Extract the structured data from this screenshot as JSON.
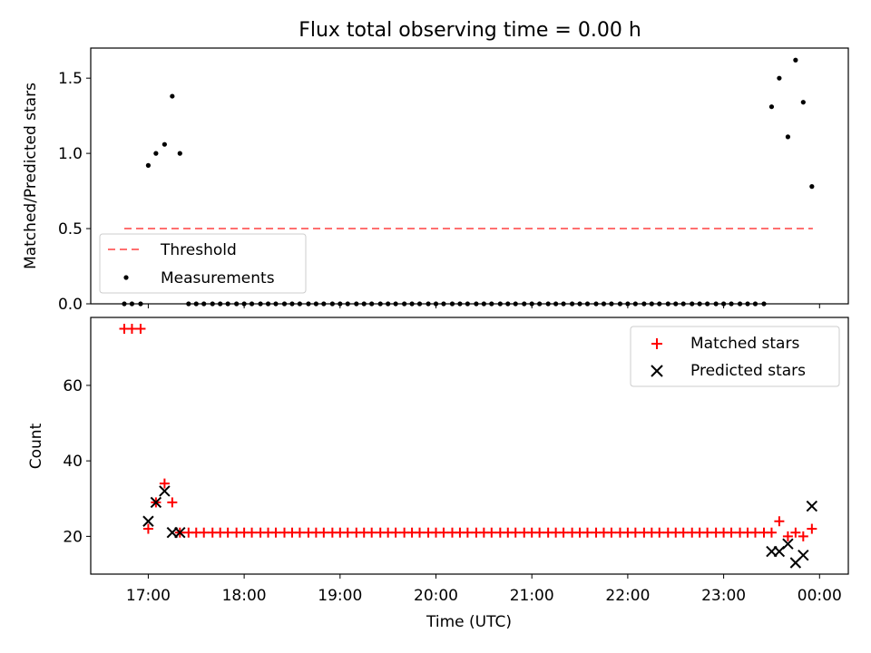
{
  "chart_data": [
    {
      "type": "scatter",
      "title": "Flux total observing time = 0.00 h",
      "xlabel": "",
      "ylabel": "Matched/Predicted stars",
      "x_unit": "hours since 00:00 UTC (17.0 = 17:00)",
      "xlim": [
        16.4,
        24.3
      ],
      "ylim": [
        0,
        1.7
      ],
      "yticks": [
        0.0,
        0.5,
        1.0,
        1.5
      ],
      "ytick_labels": [
        "0.0",
        "0.5",
        "1.0",
        "1.5"
      ],
      "grid": false,
      "legend_position": "lower-left",
      "threshold": {
        "name": "Threshold",
        "value": 0.5,
        "x_start": 16.75,
        "x_end": 23.93,
        "color": "#ff7070",
        "style": "dashed"
      },
      "series": [
        {
          "name": "Measurements",
          "marker": "dot",
          "color": "#000000",
          "points": [
            [
              16.75,
              0
            ],
            [
              16.83,
              0
            ],
            [
              16.92,
              0
            ],
            [
              17.0,
              0.92
            ],
            [
              17.08,
              1.0
            ],
            [
              17.17,
              1.06
            ],
            [
              17.25,
              1.38
            ],
            [
              17.33,
              1.0
            ],
            [
              17.42,
              0
            ],
            [
              17.5,
              0
            ],
            [
              17.58,
              0
            ],
            [
              17.67,
              0
            ],
            [
              17.75,
              0
            ],
            [
              17.83,
              0
            ],
            [
              17.92,
              0
            ],
            [
              18.0,
              0
            ],
            [
              18.08,
              0
            ],
            [
              18.17,
              0
            ],
            [
              18.25,
              0
            ],
            [
              18.33,
              0
            ],
            [
              18.42,
              0
            ],
            [
              18.5,
              0
            ],
            [
              18.58,
              0
            ],
            [
              18.67,
              0
            ],
            [
              18.75,
              0
            ],
            [
              18.83,
              0
            ],
            [
              18.92,
              0
            ],
            [
              19.0,
              0
            ],
            [
              19.08,
              0
            ],
            [
              19.17,
              0
            ],
            [
              19.25,
              0
            ],
            [
              19.33,
              0
            ],
            [
              19.42,
              0
            ],
            [
              19.5,
              0
            ],
            [
              19.58,
              0
            ],
            [
              19.67,
              0
            ],
            [
              19.75,
              0
            ],
            [
              19.83,
              0
            ],
            [
              19.92,
              0
            ],
            [
              20.0,
              0
            ],
            [
              20.08,
              0
            ],
            [
              20.17,
              0
            ],
            [
              20.25,
              0
            ],
            [
              20.33,
              0
            ],
            [
              20.42,
              0
            ],
            [
              20.5,
              0
            ],
            [
              20.58,
              0
            ],
            [
              20.67,
              0
            ],
            [
              20.75,
              0
            ],
            [
              20.83,
              0
            ],
            [
              20.92,
              0
            ],
            [
              21.0,
              0
            ],
            [
              21.08,
              0
            ],
            [
              21.17,
              0
            ],
            [
              21.25,
              0
            ],
            [
              21.33,
              0
            ],
            [
              21.42,
              0
            ],
            [
              21.5,
              0
            ],
            [
              21.58,
              0
            ],
            [
              21.67,
              0
            ],
            [
              21.75,
              0
            ],
            [
              21.83,
              0
            ],
            [
              21.92,
              0
            ],
            [
              22.0,
              0
            ],
            [
              22.08,
              0
            ],
            [
              22.17,
              0
            ],
            [
              22.25,
              0
            ],
            [
              22.33,
              0
            ],
            [
              22.42,
              0
            ],
            [
              22.5,
              0
            ],
            [
              22.58,
              0
            ],
            [
              22.67,
              0
            ],
            [
              22.75,
              0
            ],
            [
              22.83,
              0
            ],
            [
              22.92,
              0
            ],
            [
              23.0,
              0
            ],
            [
              23.08,
              0
            ],
            [
              23.17,
              0
            ],
            [
              23.25,
              0
            ],
            [
              23.33,
              0
            ],
            [
              23.42,
              0
            ],
            [
              23.5,
              1.31
            ],
            [
              23.58,
              1.5
            ],
            [
              23.67,
              1.11
            ],
            [
              23.75,
              1.62
            ],
            [
              23.83,
              1.34
            ],
            [
              23.92,
              0.78
            ]
          ]
        }
      ]
    },
    {
      "type": "scatter",
      "title": "",
      "xlabel": "Time (UTC)",
      "ylabel": "Count",
      "x_unit": "hours since 00:00 UTC (17.0 = 17:00)",
      "xlim": [
        16.4,
        24.3
      ],
      "ylim": [
        10,
        78
      ],
      "yticks": [
        20,
        40,
        60
      ],
      "ytick_labels": [
        "20",
        "40",
        "60"
      ],
      "xticks": [
        17,
        18,
        19,
        20,
        21,
        22,
        23,
        24
      ],
      "xtick_labels": [
        "17:00",
        "18:00",
        "19:00",
        "20:00",
        "21:00",
        "22:00",
        "23:00",
        "00:00"
      ],
      "grid": false,
      "legend_position": "upper-right",
      "series": [
        {
          "name": "Matched stars",
          "marker": "plus",
          "color": "#ff0000",
          "points": [
            [
              16.75,
              75
            ],
            [
              16.83,
              75
            ],
            [
              16.92,
              75
            ],
            [
              17.0,
              22
            ],
            [
              17.08,
              29
            ],
            [
              17.17,
              34
            ],
            [
              17.25,
              29
            ],
            [
              17.33,
              21
            ],
            [
              17.42,
              21
            ],
            [
              17.5,
              21
            ],
            [
              17.58,
              21
            ],
            [
              17.67,
              21
            ],
            [
              17.75,
              21
            ],
            [
              17.83,
              21
            ],
            [
              17.92,
              21
            ],
            [
              18.0,
              21
            ],
            [
              18.08,
              21
            ],
            [
              18.17,
              21
            ],
            [
              18.25,
              21
            ],
            [
              18.33,
              21
            ],
            [
              18.42,
              21
            ],
            [
              18.5,
              21
            ],
            [
              18.58,
              21
            ],
            [
              18.67,
              21
            ],
            [
              18.75,
              21
            ],
            [
              18.83,
              21
            ],
            [
              18.92,
              21
            ],
            [
              19.0,
              21
            ],
            [
              19.08,
              21
            ],
            [
              19.17,
              21
            ],
            [
              19.25,
              21
            ],
            [
              19.33,
              21
            ],
            [
              19.42,
              21
            ],
            [
              19.5,
              21
            ],
            [
              19.58,
              21
            ],
            [
              19.67,
              21
            ],
            [
              19.75,
              21
            ],
            [
              19.83,
              21
            ],
            [
              19.92,
              21
            ],
            [
              20.0,
              21
            ],
            [
              20.08,
              21
            ],
            [
              20.17,
              21
            ],
            [
              20.25,
              21
            ],
            [
              20.33,
              21
            ],
            [
              20.42,
              21
            ],
            [
              20.5,
              21
            ],
            [
              20.58,
              21
            ],
            [
              20.67,
              21
            ],
            [
              20.75,
              21
            ],
            [
              20.83,
              21
            ],
            [
              20.92,
              21
            ],
            [
              21.0,
              21
            ],
            [
              21.08,
              21
            ],
            [
              21.17,
              21
            ],
            [
              21.25,
              21
            ],
            [
              21.33,
              21
            ],
            [
              21.42,
              21
            ],
            [
              21.5,
              21
            ],
            [
              21.58,
              21
            ],
            [
              21.67,
              21
            ],
            [
              21.75,
              21
            ],
            [
              21.83,
              21
            ],
            [
              21.92,
              21
            ],
            [
              22.0,
              21
            ],
            [
              22.08,
              21
            ],
            [
              22.17,
              21
            ],
            [
              22.25,
              21
            ],
            [
              22.33,
              21
            ],
            [
              22.42,
              21
            ],
            [
              22.5,
              21
            ],
            [
              22.58,
              21
            ],
            [
              22.67,
              21
            ],
            [
              22.75,
              21
            ],
            [
              22.83,
              21
            ],
            [
              22.92,
              21
            ],
            [
              23.0,
              21
            ],
            [
              23.08,
              21
            ],
            [
              23.17,
              21
            ],
            [
              23.25,
              21
            ],
            [
              23.33,
              21
            ],
            [
              23.42,
              21
            ],
            [
              23.5,
              21
            ],
            [
              23.58,
              24
            ],
            [
              23.67,
              20
            ],
            [
              23.75,
              21
            ],
            [
              23.83,
              20
            ],
            [
              23.92,
              22
            ]
          ]
        },
        {
          "name": "Predicted stars",
          "marker": "x",
          "color": "#000000",
          "points": [
            [
              17.0,
              24
            ],
            [
              17.08,
              29
            ],
            [
              17.17,
              32
            ],
            [
              17.25,
              21
            ],
            [
              17.33,
              21
            ],
            [
              23.5,
              16
            ],
            [
              23.58,
              16
            ],
            [
              23.67,
              18
            ],
            [
              23.75,
              13
            ],
            [
              23.83,
              15
            ],
            [
              23.92,
              28
            ]
          ]
        }
      ]
    }
  ]
}
